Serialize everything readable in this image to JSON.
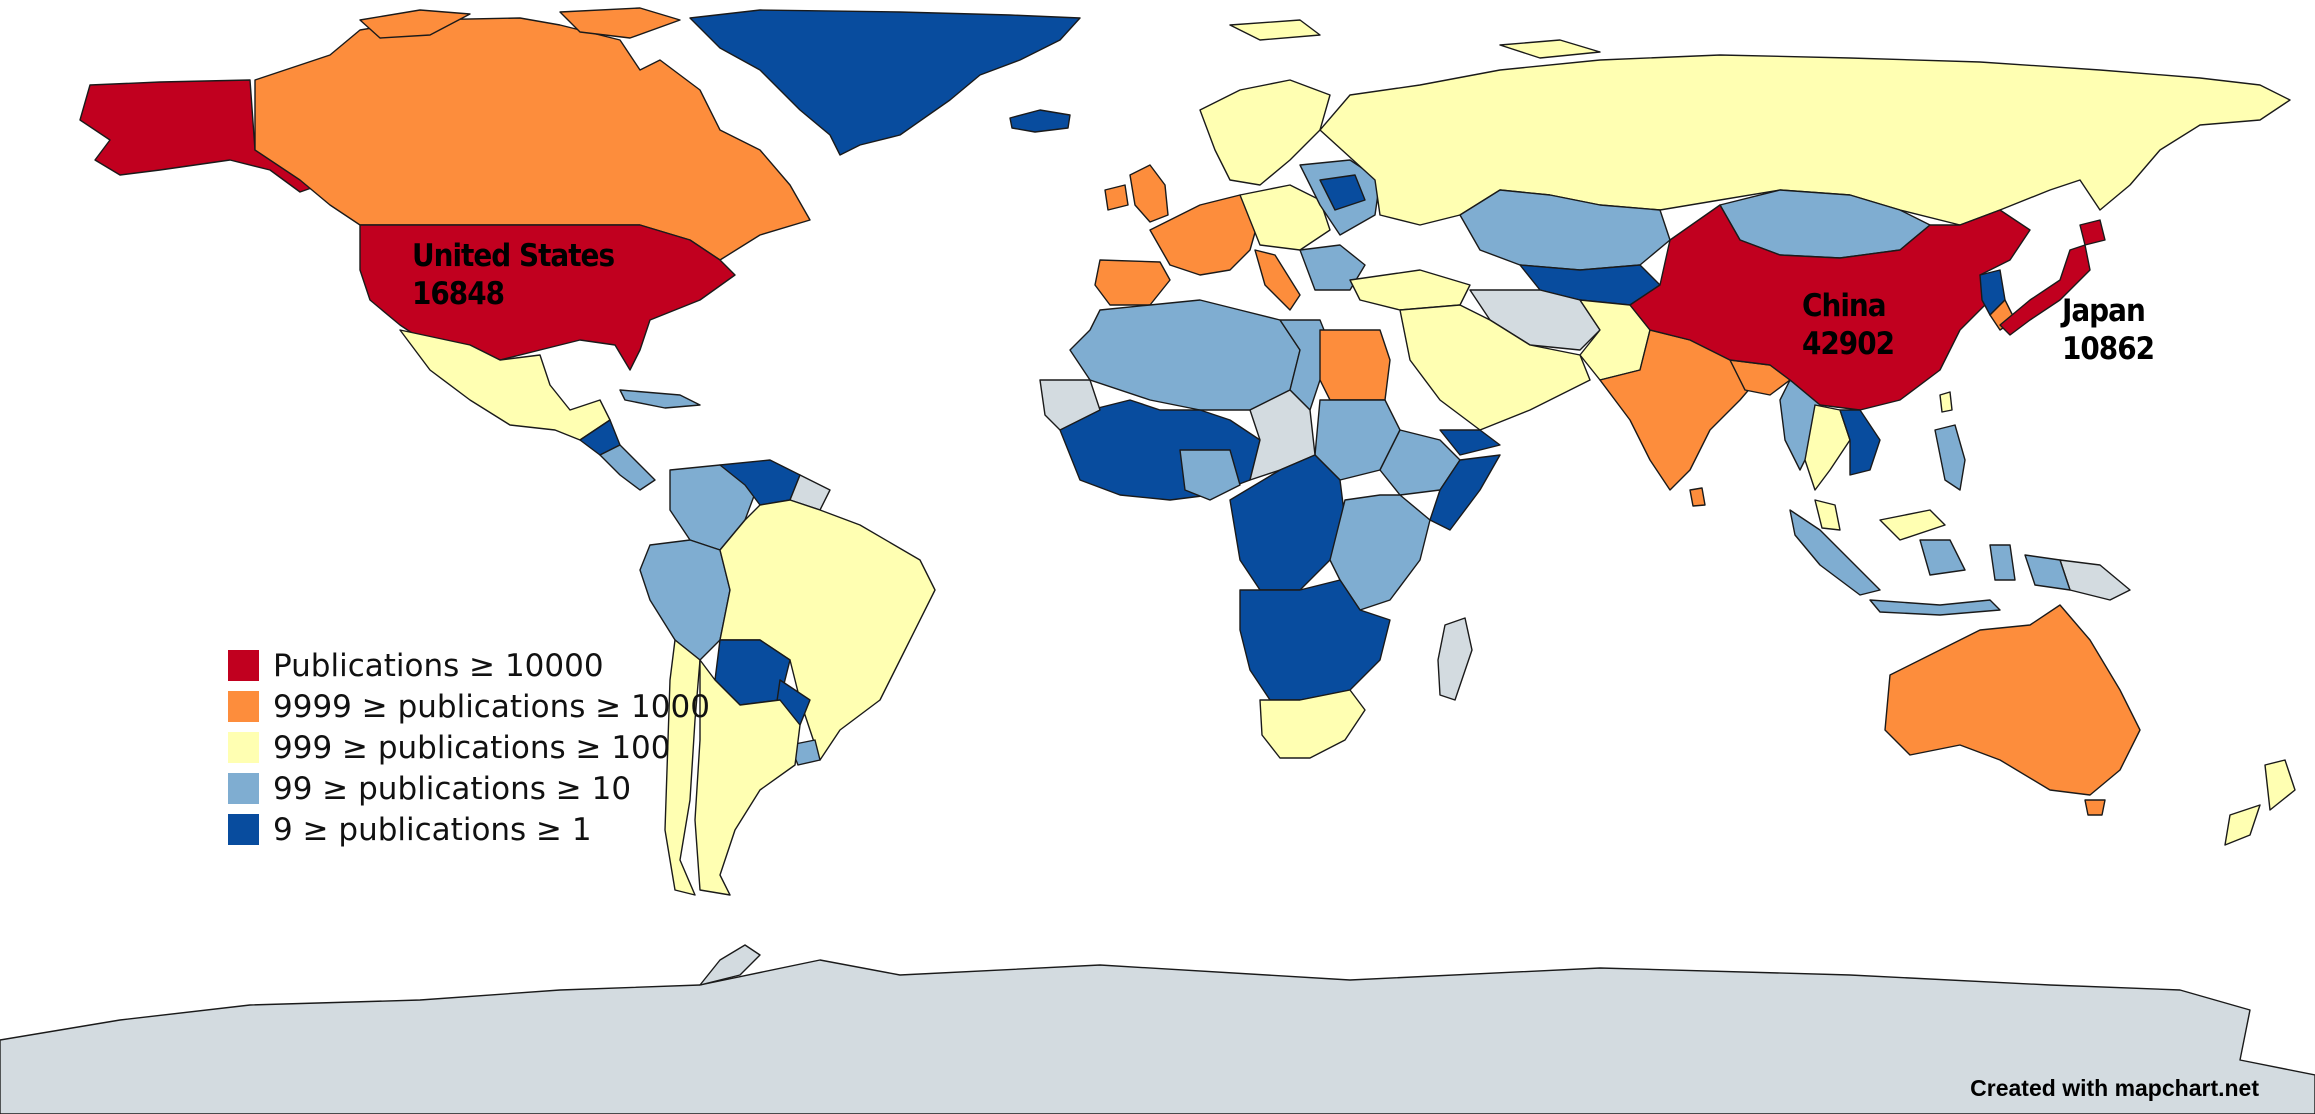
{
  "legend": {
    "items": [
      {
        "label": "Publications ≥ 10000",
        "color": "#c1001f"
      },
      {
        "label": "9999 ≥ publications ≥ 1000",
        "color": "#fd8d3c"
      },
      {
        "label": "999 ≥ publications ≥ 100",
        "color": "#ffffb2"
      },
      {
        "label": "99 ≥ publications ≥ 10",
        "color": "#7fadd1"
      },
      {
        "label": "9 ≥ publications ≥ 1",
        "color": "#084c9e"
      }
    ]
  },
  "labels": {
    "usa": {
      "name": "United States",
      "value": "16848"
    },
    "china": {
      "name": "China",
      "value": "42902"
    },
    "japan": {
      "name": "Japan",
      "value": "10862"
    }
  },
  "colors": {
    "no_data": "#d3dbe0",
    "tier1": "#c1001f",
    "tier2": "#fd8d3c",
    "tier3": "#ffffb2",
    "tier4": "#7fadd1",
    "tier5": "#084c9e"
  },
  "credit": "Created with mapchart.net"
}
